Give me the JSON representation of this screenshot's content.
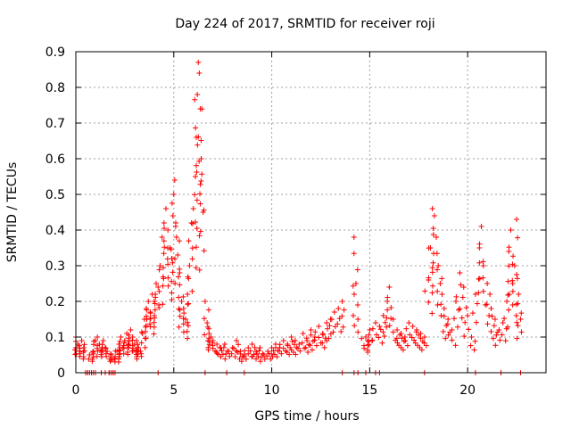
{
  "chart_data": {
    "type": "scatter",
    "title": "Day 224 of 2017, SRMTID for receiver roji",
    "xlabel": "GPS time / hours",
    "ylabel": "SRMTID / TECUs",
    "xlim": [
      0,
      24
    ],
    "ylim": [
      0,
      0.9
    ],
    "xticks": [
      0,
      5,
      10,
      15,
      20
    ],
    "yticks": [
      0,
      0.1,
      0.2,
      0.3,
      0.4,
      0.5,
      0.6,
      0.7,
      0.8,
      0.9
    ],
    "xtick_labels": [
      "0",
      "5",
      "10",
      "15",
      "20"
    ],
    "ytick_labels": [
      "0",
      "0.1",
      "0.2",
      "0.3",
      "0.4",
      "0.5",
      "0.6",
      "0.7",
      "0.8",
      "0.9"
    ],
    "grid": true,
    "marker": "+",
    "color": "#ff0000",
    "series": [
      {
        "name": "SRMTID",
        "x": [
          0.0,
          0.1,
          0.2,
          0.3,
          0.4,
          0.5,
          0.6,
          0.7,
          0.8,
          0.9,
          1.0,
          1.1,
          1.2,
          1.3,
          1.4,
          1.5,
          1.6,
          1.7,
          1.8,
          1.9,
          2.0,
          2.1,
          2.2,
          2.3,
          2.4,
          2.5,
          2.6,
          2.7,
          2.8,
          2.9,
          3.0,
          3.1,
          3.2,
          3.3,
          3.4,
          3.5,
          3.6,
          3.7,
          3.8,
          3.9,
          4.0,
          4.1,
          4.2,
          4.3,
          4.4,
          4.5,
          4.6,
          4.7,
          4.8,
          4.9,
          5.0,
          5.05,
          5.1,
          5.2,
          5.3,
          5.4,
          5.5,
          5.6,
          5.7,
          5.8,
          5.9,
          6.0,
          6.1,
          6.15,
          6.2,
          6.25,
          6.3,
          6.35,
          6.4,
          6.5,
          6.6,
          6.7,
          6.8,
          6.9,
          7.0,
          7.2,
          7.4,
          7.6,
          7.8,
          8.0,
          8.2,
          8.4,
          8.6,
          8.8,
          9.0,
          9.2,
          9.4,
          9.6,
          9.8,
          10.0,
          10.2,
          10.4,
          10.6,
          10.8,
          11.0,
          11.2,
          11.4,
          11.6,
          11.8,
          12.0,
          12.2,
          12.4,
          12.6,
          12.8,
          13.0,
          13.2,
          13.4,
          13.6,
          14.2,
          14.3,
          14.4,
          14.8,
          14.9,
          15.0,
          15.3,
          15.5,
          15.7,
          15.9,
          16.0,
          16.2,
          16.4,
          16.6,
          16.8,
          17.0,
          17.2,
          17.4,
          17.6,
          17.8,
          18.0,
          18.1,
          18.2,
          18.3,
          18.4,
          18.5,
          18.6,
          18.8,
          19.0,
          19.2,
          19.4,
          19.6,
          19.8,
          20.0,
          20.2,
          20.4,
          20.6,
          20.7,
          20.8,
          21.0,
          21.2,
          21.4,
          21.6,
          21.8,
          22.0,
          22.1,
          22.2,
          22.3,
          22.4,
          22.5,
          22.6,
          22.7
        ],
        "y": [
          0.1,
          0.08,
          0.06,
          0.09,
          0.07,
          0.0,
          0.0,
          0.05,
          0.0,
          0.06,
          0.09,
          0.1,
          0.08,
          0.0,
          0.09,
          0.07,
          0.06,
          0.0,
          0.05,
          0.0,
          0.04,
          0.06,
          0.08,
          0.1,
          0.07,
          0.09,
          0.11,
          0.08,
          0.12,
          0.1,
          0.08,
          0.09,
          0.07,
          0.06,
          0.11,
          0.15,
          0.18,
          0.2,
          0.17,
          0.22,
          0.2,
          0.25,
          0.24,
          0.3,
          0.38,
          0.42,
          0.46,
          0.4,
          0.35,
          0.32,
          0.5,
          0.54,
          0.42,
          0.33,
          0.28,
          0.2,
          0.18,
          0.15,
          0.22,
          0.3,
          0.42,
          0.46,
          0.55,
          0.66,
          0.78,
          0.87,
          0.84,
          0.74,
          0.6,
          0.45,
          0.2,
          0.14,
          0.11,
          0.1,
          0.09,
          0.08,
          0.07,
          0.08,
          0.06,
          0.07,
          0.09,
          0.06,
          0.05,
          0.07,
          0.08,
          0.06,
          0.07,
          0.05,
          0.06,
          0.07,
          0.08,
          0.07,
          0.09,
          0.08,
          0.1,
          0.09,
          0.08,
          0.11,
          0.09,
          0.12,
          0.1,
          0.13,
          0.11,
          0.14,
          0.15,
          0.17,
          0.18,
          0.2,
          0.38,
          0.25,
          0.15,
          0.1,
          0.09,
          0.12,
          0.14,
          0.13,
          0.16,
          0.2,
          0.24,
          0.15,
          0.12,
          0.11,
          0.1,
          0.14,
          0.13,
          0.12,
          0.11,
          0.1,
          0.26,
          0.35,
          0.46,
          0.44,
          0.38,
          0.3,
          0.25,
          0.18,
          0.15,
          0.12,
          0.2,
          0.28,
          0.24,
          0.16,
          0.1,
          0.22,
          0.35,
          0.41,
          0.3,
          0.25,
          0.18,
          0.15,
          0.12,
          0.14,
          0.2,
          0.34,
          0.4,
          0.25,
          0.3,
          0.43,
          0.22,
          0.15
        ],
        "zero_markers_x": [
          0.5,
          0.6,
          0.7,
          0.8,
          0.9,
          1.0,
          1.3,
          1.5,
          1.7,
          1.8,
          1.9,
          2.0,
          4.2,
          6.6,
          7.7,
          8.6,
          13.6,
          14.2,
          14.4,
          14.8,
          15.3,
          15.5,
          17.8,
          20.4,
          21.7,
          22.7
        ]
      }
    ]
  }
}
